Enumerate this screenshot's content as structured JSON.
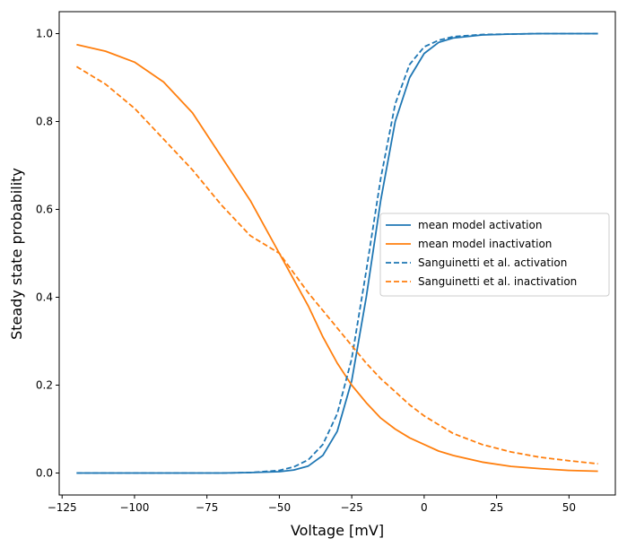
{
  "chart_data": {
    "type": "line",
    "title": "",
    "xlabel": "Voltage [mV]",
    "ylabel": "Steady state probability",
    "xlim": [
      -126,
      66
    ],
    "ylim": [
      -0.05,
      1.05
    ],
    "xticks": [
      -125,
      -100,
      -75,
      -50,
      -25,
      0,
      25,
      50
    ],
    "xtick_labels": [
      "−125",
      "−100",
      "−75",
      "−50",
      "−25",
      "0",
      "25",
      "50"
    ],
    "yticks": [
      0.0,
      0.2,
      0.4,
      0.6,
      0.8,
      1.0
    ],
    "ytick_labels": [
      "0.0",
      "0.2",
      "0.4",
      "0.6",
      "0.8",
      "1.0"
    ],
    "grid": false,
    "legend_position": "center-right",
    "x": [
      -120,
      -110,
      -100,
      -90,
      -80,
      -70,
      -60,
      -50,
      -45,
      -40,
      -35,
      -30,
      -25,
      -20,
      -15,
      -10,
      -5,
      0,
      5,
      10,
      20,
      30,
      40,
      50,
      60
    ],
    "series": [
      {
        "name": "mean model activation",
        "color": "#1f77b4",
        "style": "solid",
        "values": [
          0.0,
          0.0,
          0.0,
          0.0,
          0.0,
          0.0,
          0.001,
          0.003,
          0.007,
          0.016,
          0.04,
          0.095,
          0.21,
          0.4,
          0.62,
          0.8,
          0.9,
          0.955,
          0.98,
          0.99,
          0.997,
          0.999,
          1.0,
          1.0,
          1.0
        ]
      },
      {
        "name": "mean model inactivation",
        "color": "#ff7f0e",
        "style": "solid",
        "values": [
          0.975,
          0.96,
          0.935,
          0.89,
          0.82,
          0.72,
          0.62,
          0.5,
          0.44,
          0.38,
          0.31,
          0.25,
          0.2,
          0.16,
          0.125,
          0.1,
          0.08,
          0.065,
          0.05,
          0.04,
          0.025,
          0.015,
          0.01,
          0.006,
          0.004
        ]
      },
      {
        "name": "Sanguinetti et al. activation",
        "color": "#1f77b4",
        "style": "dashed",
        "values": [
          0.0,
          0.0,
          0.0,
          0.0,
          0.0,
          0.0,
          0.001,
          0.006,
          0.014,
          0.03,
          0.065,
          0.135,
          0.26,
          0.46,
          0.67,
          0.84,
          0.93,
          0.97,
          0.985,
          0.993,
          0.998,
          0.999,
          1.0,
          1.0,
          1.0
        ]
      },
      {
        "name": "Sanguinetti et al. inactivation",
        "color": "#ff7f0e",
        "style": "dashed",
        "values": [
          0.925,
          0.885,
          0.83,
          0.76,
          0.69,
          0.61,
          0.54,
          0.5,
          0.455,
          0.41,
          0.37,
          0.33,
          0.29,
          0.25,
          0.215,
          0.185,
          0.155,
          0.13,
          0.11,
          0.09,
          0.065,
          0.048,
          0.036,
          0.028,
          0.021
        ]
      }
    ]
  }
}
